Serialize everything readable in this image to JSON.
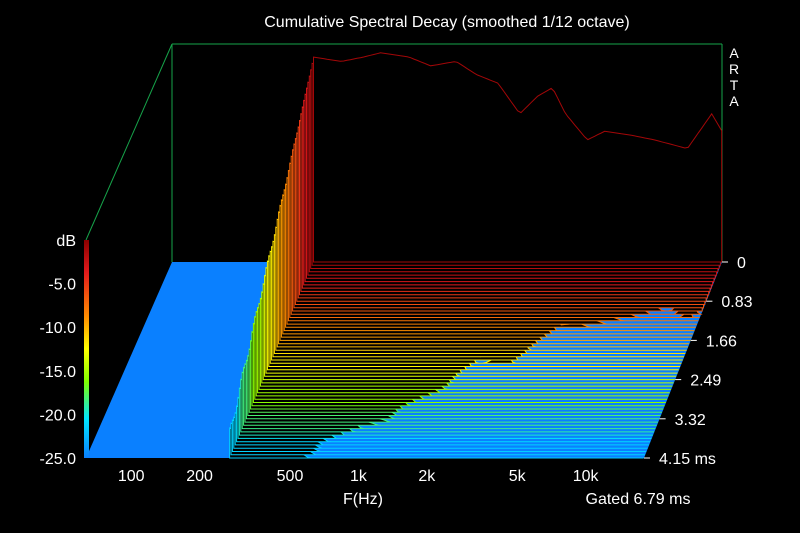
{
  "chart_data": {
    "type": "waterfall-3d",
    "title": "Cumulative Spectral Decay (smoothed 1/12 octave)",
    "xlabel": "F(Hz)",
    "x_ticks": [
      "100",
      "200",
      "500",
      "1k",
      "2k",
      "5k",
      "10k"
    ],
    "x_tick_values": [
      100,
      200,
      500,
      1000,
      2000,
      5000,
      10000
    ],
    "y_label": "dB",
    "y_ticks": [
      "-5.0",
      "-10.0",
      "-15.0",
      "-20.0",
      "-25.0"
    ],
    "y_tick_values": [
      -5,
      -10,
      -15,
      -20,
      -25
    ],
    "ylim": [
      -25,
      0
    ],
    "z_ticks": [
      "0",
      "0.83",
      "1.66",
      "2.49",
      "3.32",
      "4.15 ms"
    ],
    "z_tick_values": [
      0,
      0.83,
      1.66,
      2.49,
      3.32,
      4.15
    ],
    "zlim_ms": [
      0,
      4.15
    ],
    "gated_label": "Gated 6.79 ms",
    "watermark": [
      "A",
      "R",
      "T",
      "A"
    ],
    "response_front_db": [
      {
        "f": 300,
        "db": -1.5
      },
      {
        "f": 400,
        "db": -2.0
      },
      {
        "f": 500,
        "db": -1.5
      },
      {
        "f": 600,
        "db": -1.0
      },
      {
        "f": 800,
        "db": -1.5
      },
      {
        "f": 1000,
        "db": -2.5
      },
      {
        "f": 1300,
        "db": -2.0
      },
      {
        "f": 1600,
        "db": -3.5
      },
      {
        "f": 2000,
        "db": -4.5
      },
      {
        "f": 2500,
        "db": -8.0
      },
      {
        "f": 3000,
        "db": -6.0
      },
      {
        "f": 3500,
        "db": -5.0
      },
      {
        "f": 4000,
        "db": -8.0
      },
      {
        "f": 5000,
        "db": -11.0
      },
      {
        "f": 6000,
        "db": -10.0
      },
      {
        "f": 8000,
        "db": -10.5
      },
      {
        "f": 10000,
        "db": -11.0
      },
      {
        "f": 14000,
        "db": -12.0
      },
      {
        "f": 18000,
        "db": -8.0
      },
      {
        "f": 20000,
        "db": -10.0
      }
    ],
    "slices": 60,
    "colors": {
      "background": "#000000",
      "floor": "#0a80ff",
      "frame": "#16a34a",
      "text": "#ffffff"
    }
  }
}
